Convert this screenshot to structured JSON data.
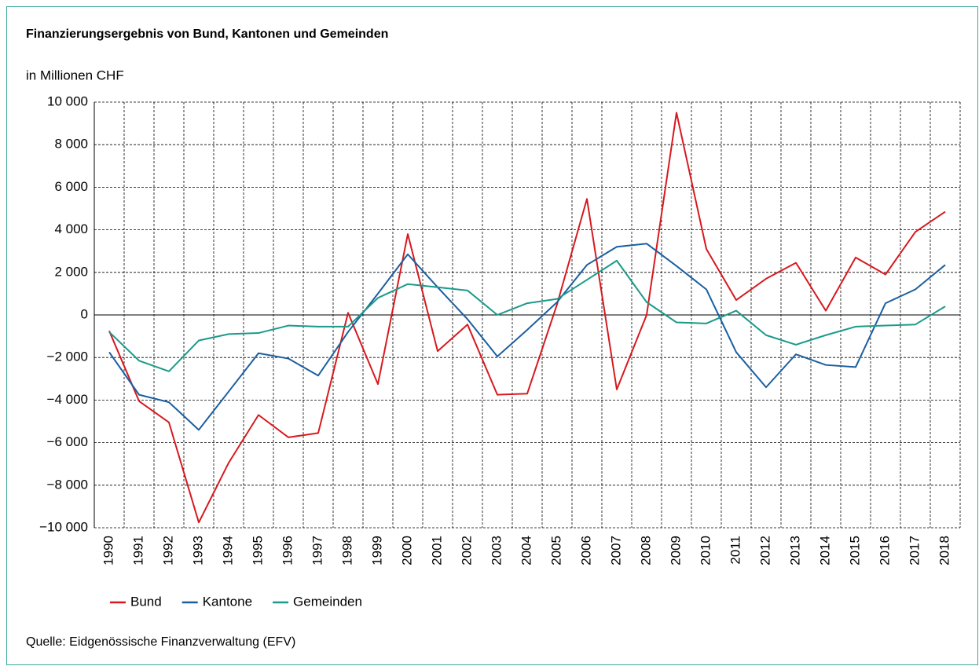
{
  "chart_data": {
    "type": "line",
    "title": "Finanzierungsergebnis von Bund, Kantonen und Gemeinden",
    "y_label": "in Millionen CHF",
    "source": "Quelle: Eidgenössische Finanzverwaltung (EFV)",
    "categories": [
      "1990",
      "1991",
      "1992",
      "1993",
      "1994",
      "1995",
      "1996",
      "1997",
      "1998",
      "1999",
      "2000",
      "2001",
      "2002",
      "2003",
      "2004",
      "2005",
      "2006",
      "2007",
      "2008",
      "2009",
      "2010",
      "2011",
      "2012",
      "2013",
      "2014",
      "2015",
      "2016",
      "2017",
      "2018"
    ],
    "series": [
      {
        "name": "Bund",
        "color": "#d7191f",
        "values": [
          -750,
          -4050,
          -5050,
          -9750,
          -6950,
          -4700,
          -5750,
          -5550,
          100,
          -3250,
          3800,
          -1700,
          -450,
          -3750,
          -3700,
          500,
          5450,
          -3500,
          0,
          9500,
          3100,
          700,
          1700,
          2450,
          200,
          2700,
          1900,
          3900,
          4850
        ]
      },
      {
        "name": "Kantone",
        "color": "#1a5fa0",
        "values": [
          -1750,
          -3750,
          -4100,
          -5400,
          -3600,
          -1800,
          -2050,
          -2850,
          -800,
          1000,
          2850,
          1300,
          -200,
          -1950,
          -700,
          600,
          2350,
          3200,
          3350,
          2300,
          1200,
          -1750,
          -3400,
          -1850,
          -2350,
          -2450,
          550,
          1200,
          2350
        ]
      },
      {
        "name": "Gemeinden",
        "color": "#1a9a8a",
        "values": [
          -800,
          -2150,
          -2650,
          -1200,
          -900,
          -850,
          -500,
          -550,
          -550,
          800,
          1450,
          1300,
          1150,
          0,
          550,
          750,
          1650,
          2550,
          600,
          -350,
          -400,
          200,
          -950,
          -1400,
          -950,
          -550,
          -500,
          -450,
          400
        ]
      }
    ],
    "ylim": [
      -10000,
      10000
    ],
    "yticks": [
      {
        "value": -10000,
        "label": "−10 000"
      },
      {
        "value": -8000,
        "label": "−8 000"
      },
      {
        "value": -6000,
        "label": "−6 000"
      },
      {
        "value": -4000,
        "label": "−4 000"
      },
      {
        "value": -2000,
        "label": "−2 000"
      },
      0,
      {
        "value": 2000,
        "label": "2 000"
      },
      {
        "value": 4000,
        "label": "4 000"
      },
      {
        "value": 6000,
        "label": "6 000"
      },
      {
        "value": 8000,
        "label": "8 000"
      },
      {
        "value": 10000,
        "label": "10 000"
      }
    ],
    "grid": true
  }
}
